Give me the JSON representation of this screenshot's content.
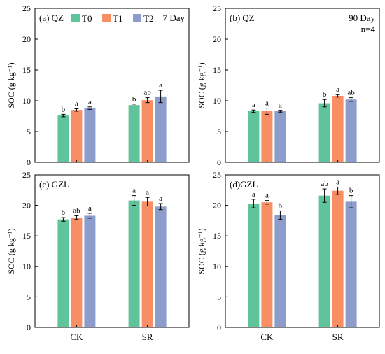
{
  "legend": {
    "entries": [
      {
        "name": "T0",
        "color": "#5fc49a"
      },
      {
        "name": "T1",
        "color": "#f78e64"
      },
      {
        "name": "T2",
        "color": "#8d9dcb"
      }
    ],
    "placement": "top-left of panel (a)"
  },
  "chart_data": [
    {
      "type": "bar",
      "panel_label": "(a) QZ",
      "annotation": "7 Day",
      "ylabel": "SOC (g kg⁻¹)",
      "ylim": [
        0,
        25
      ],
      "yticks": [
        0,
        5,
        10,
        15,
        20,
        25
      ],
      "categories": [
        "CK",
        "SR"
      ],
      "series": [
        {
          "name": "T0",
          "values": [
            7.6,
            9.3
          ],
          "errors": [
            0.2,
            0.15
          ],
          "letters": [
            "b",
            "b"
          ]
        },
        {
          "name": "T1",
          "values": [
            8.5,
            10.1
          ],
          "errors": [
            0.2,
            0.4
          ],
          "letters": [
            "a",
            "ab"
          ]
        },
        {
          "name": "T2",
          "values": [
            8.8,
            10.7
          ],
          "errors": [
            0.2,
            1.0
          ],
          "letters": [
            "a",
            "a"
          ]
        }
      ]
    },
    {
      "type": "bar",
      "panel_label": "(b) QZ",
      "annotation": "90 Day",
      "annotation2": "n=4",
      "ylabel": "SOC (g kg⁻¹)",
      "ylim": [
        0,
        25
      ],
      "yticks": [
        0,
        5,
        10,
        15,
        20,
        25
      ],
      "categories": [
        "CK",
        "SR"
      ],
      "series": [
        {
          "name": "T0",
          "values": [
            8.3,
            9.6
          ],
          "errors": [
            0.2,
            0.6
          ],
          "letters": [
            "a",
            "b"
          ]
        },
        {
          "name": "T1",
          "values": [
            8.3,
            10.8
          ],
          "errors": [
            0.5,
            0.2
          ],
          "letters": [
            "a",
            "a"
          ]
        },
        {
          "name": "T2",
          "values": [
            8.3,
            10.2
          ],
          "errors": [
            0.15,
            0.3
          ],
          "letters": [
            "a",
            "ab"
          ]
        }
      ]
    },
    {
      "type": "bar",
      "panel_label": "(c) GZL",
      "ylabel": "SOC (g kg⁻¹)",
      "ylim": [
        0,
        25
      ],
      "yticks": [
        0,
        5,
        10,
        15,
        20,
        25
      ],
      "categories": [
        "CK",
        "SR"
      ],
      "series": [
        {
          "name": "T0",
          "values": [
            17.7,
            20.8
          ],
          "errors": [
            0.3,
            0.8
          ],
          "letters": [
            "b",
            "a"
          ]
        },
        {
          "name": "T1",
          "values": [
            18.0,
            20.6
          ],
          "errors": [
            0.3,
            0.7
          ],
          "letters": [
            "ab",
            "a"
          ]
        },
        {
          "name": "T2",
          "values": [
            18.3,
            19.8
          ],
          "errors": [
            0.4,
            0.5
          ],
          "letters": [
            "a",
            "a"
          ]
        }
      ]
    },
    {
      "type": "bar",
      "panel_label": "(d)GZL",
      "ylabel": "SOC (g kg⁻¹)",
      "ylim": [
        0,
        25
      ],
      "yticks": [
        0,
        5,
        10,
        15,
        20,
        25
      ],
      "categories": [
        "CK",
        "SR"
      ],
      "series": [
        {
          "name": "T0",
          "values": [
            20.3,
            21.6
          ],
          "errors": [
            0.7,
            1.1
          ],
          "letters": [
            "a",
            "ab"
          ]
        },
        {
          "name": "T1",
          "values": [
            20.5,
            22.4
          ],
          "errors": [
            0.3,
            0.6
          ],
          "letters": [
            "a",
            "a"
          ]
        },
        {
          "name": "T2",
          "values": [
            18.4,
            20.6
          ],
          "errors": [
            0.7,
            1.0
          ],
          "letters": [
            "b",
            "b"
          ]
        }
      ]
    }
  ]
}
